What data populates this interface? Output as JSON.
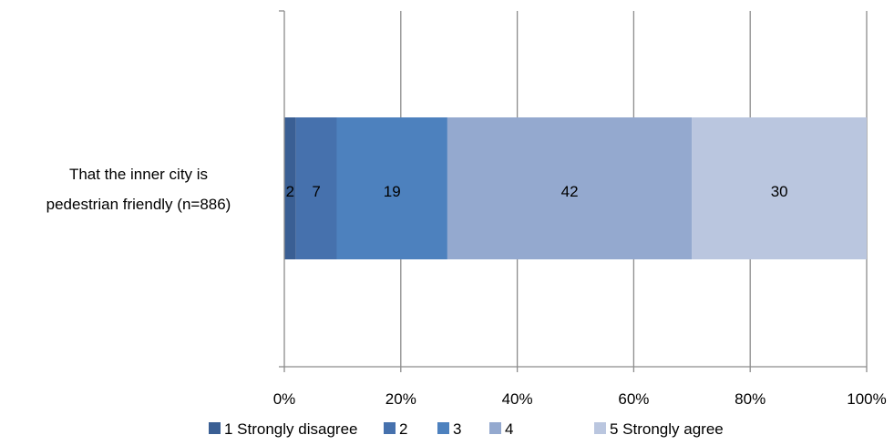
{
  "chart_data": {
    "type": "bar",
    "orientation": "horizontal",
    "stacked": true,
    "percent_stacked": true,
    "categories": [
      "That the inner city is pedestrian friendly (n=886)"
    ],
    "category_lines": [
      "That the inner city is",
      "pedestrian friendly (n=886)"
    ],
    "series": [
      {
        "name": "1 Strongly disagree",
        "values": [
          2
        ],
        "label": "2",
        "color": "#3A5F94"
      },
      {
        "name": "2",
        "values": [
          7
        ],
        "label": "7",
        "color": "#4671AD"
      },
      {
        "name": "3",
        "values": [
          19
        ],
        "label": "19",
        "color": "#4D81BE"
      },
      {
        "name": "4",
        "values": [
          42
        ],
        "label": "42",
        "color": "#94A9CF"
      },
      {
        "name": "5 Strongly agree",
        "values": [
          30
        ],
        "label": "30",
        "color": "#BAC6DF"
      }
    ],
    "x_ticks": [
      "0%",
      "20%",
      "40%",
      "60%",
      "80%",
      "100%"
    ],
    "xlim": [
      0,
      100
    ],
    "grid": true,
    "legend_position": "bottom",
    "title": "",
    "xlabel": "",
    "ylabel": ""
  }
}
